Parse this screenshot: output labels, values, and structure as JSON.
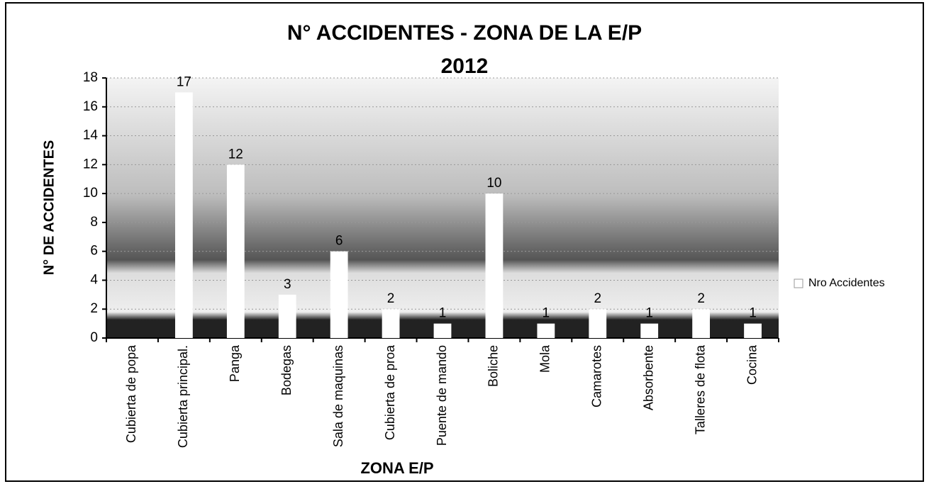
{
  "chart_data": {
    "type": "bar",
    "title": "N° ACCIDENTES - ZONA DE LA E/P",
    "subtitle": "2012",
    "ylabel": "N° DE ACCIDENTES",
    "xlabel": "ZONA  E/P",
    "categories": [
      "Cubierta de popa",
      "Cubierta principal.",
      "Panga",
      "Bodegas",
      "Sala de maquinas",
      "Cubierta de proa",
      "Puente de mando",
      "Boliche",
      "Mola",
      "Camarotes",
      "Absorbente",
      "Talleres de flota",
      "Cocina"
    ],
    "series": [
      {
        "name": "Nro Accidentes",
        "color": "#ffffff",
        "values": [
          null,
          17,
          12,
          3,
          6,
          2,
          1,
          10,
          1,
          2,
          1,
          2,
          1
        ]
      }
    ],
    "ylim": [
      0,
      18
    ],
    "yticks": [
      0,
      2,
      4,
      6,
      8,
      10,
      12,
      14,
      16,
      18
    ],
    "grid": true,
    "legend": "right"
  }
}
